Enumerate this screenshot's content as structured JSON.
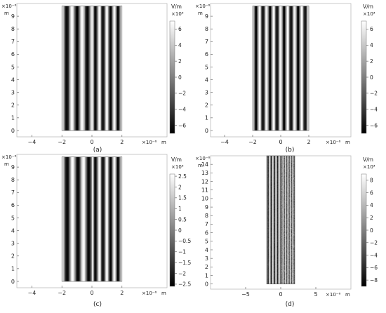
{
  "panels": [
    {
      "id": "a",
      "caption": "(a)",
      "exp_y": "×10⁻⁶",
      "unit_y": "m",
      "exp_x": "×10⁻⁶",
      "unit_x": "m",
      "cb_unit": "V/m",
      "cb_exp": "×10³"
    },
    {
      "id": "b",
      "caption": "(b)",
      "exp_y": "×10⁻⁶",
      "unit_y": "m",
      "exp_x": "×10⁻⁶",
      "unit_x": "m",
      "cb_unit": "V/m",
      "cb_exp": "×10³"
    },
    {
      "id": "c",
      "caption": "(c)",
      "exp_y": "×10⁻⁶",
      "unit_y": "m",
      "exp_x": "×10⁻⁶",
      "unit_x": "m",
      "cb_unit": "V/m",
      "cb_exp": "×10³"
    },
    {
      "id": "d",
      "caption": "(d)",
      "exp_y": "×10⁻⁶",
      "unit_y": "m",
      "exp_x": "×10⁻⁶",
      "unit_x": "m",
      "cb_unit": "V/m",
      "cb_exp": "×10³"
    }
  ],
  "chart_data": [
    {
      "type": "heatmap",
      "panel": "a",
      "x_range": [
        -5.0,
        5.0
      ],
      "y_range": [
        -0.5,
        10.0
      ],
      "x_ticks": [
        -4,
        -2,
        0,
        2
      ],
      "y_ticks": [
        0,
        1,
        2,
        3,
        4,
        5,
        6,
        7,
        8,
        9
      ],
      "field_region": {
        "x": [
          -2,
          2
        ],
        "y": [
          0,
          9.8
        ]
      },
      "stripe_periods": [
        {
          "x": [
            -2,
            0
          ],
          "period": 0.68
        },
        {
          "x": [
            0,
            2
          ],
          "period": 0.5
        }
      ],
      "colorbar": {
        "min": -7,
        "max": 7,
        "ticks": [
          6,
          4,
          2,
          0,
          -2,
          -4,
          -6
        ],
        "tick_labels": [
          "6",
          "4",
          "2",
          "0",
          "−2",
          "−4",
          "−6"
        ],
        "colormap": "gray"
      },
      "texture": "stripes"
    },
    {
      "type": "heatmap",
      "panel": "b",
      "x_range": [
        -5.0,
        5.0
      ],
      "y_range": [
        -0.5,
        10.0
      ],
      "x_ticks": [
        -4,
        -2,
        0,
        2
      ],
      "y_ticks": [
        0,
        1,
        2,
        3,
        4,
        5,
        6,
        7,
        8,
        9
      ],
      "field_region": {
        "x": [
          -2,
          2
        ],
        "y": [
          0,
          9.8
        ]
      },
      "stripe_periods": [
        {
          "x": [
            -2,
            0
          ],
          "period": 0.5
        },
        {
          "x": [
            0,
            2
          ],
          "period": 0.5
        }
      ],
      "colorbar": {
        "min": -7,
        "max": 7,
        "ticks": [
          6,
          4,
          2,
          0,
          -2,
          -4,
          -6
        ],
        "tick_labels": [
          "6",
          "4",
          "2",
          "0",
          "−2",
          "−4",
          "−6"
        ],
        "colormap": "gray"
      },
      "texture": "stripes"
    },
    {
      "type": "heatmap",
      "panel": "c",
      "x_range": [
        -5.0,
        5.0
      ],
      "y_range": [
        -0.5,
        10.0
      ],
      "x_ticks": [
        -4,
        -2,
        0,
        2
      ],
      "y_ticks": [
        0,
        1,
        2,
        3,
        4,
        5,
        6,
        7,
        8,
        9
      ],
      "field_region": {
        "x": [
          -2,
          2
        ],
        "y": [
          0,
          9.8
        ]
      },
      "stripe_periods": [
        {
          "x": [
            -2,
            0
          ],
          "period": 0.72
        },
        {
          "x": [
            0,
            2
          ],
          "period": 0.5
        }
      ],
      "colorbar": {
        "min": -2.6,
        "max": 2.6,
        "ticks": [
          2.5,
          2,
          1.5,
          1,
          0.5,
          0,
          -0.5,
          -1,
          -1.5,
          -2,
          -2.5
        ],
        "tick_labels": [
          "2.5",
          "2",
          "1.5",
          "1",
          "0.5",
          "0",
          "−0.5",
          "−1",
          "−1.5",
          "−2",
          "−2.5"
        ],
        "colormap": "gray"
      },
      "texture": "stripes"
    },
    {
      "type": "heatmap",
      "panel": "d",
      "x_range": [
        -10.0,
        10.0
      ],
      "y_range": [
        -0.6,
        15.0
      ],
      "x_ticks": [
        -5,
        0,
        5
      ],
      "y_ticks": [
        0,
        1,
        2,
        3,
        4,
        5,
        6,
        7,
        8,
        9,
        10,
        11,
        12,
        13,
        14
      ],
      "field_region": {
        "x": [
          -2,
          2
        ],
        "y": [
          0,
          15
        ]
      },
      "stripe_periods": [
        {
          "x": [
            -2,
            0
          ],
          "period": 0.45
        },
        {
          "x": [
            0,
            2
          ],
          "period": 0.35
        }
      ],
      "colorbar": {
        "min": -9,
        "max": 9,
        "ticks": [
          8,
          6,
          4,
          2,
          0,
          -2,
          -4,
          -6,
          -8
        ],
        "tick_labels": [
          "8",
          "6",
          "4",
          "2",
          "0",
          "−2",
          "−4",
          "−6",
          "−8"
        ],
        "colormap": "gray"
      },
      "texture": "speckle"
    }
  ]
}
